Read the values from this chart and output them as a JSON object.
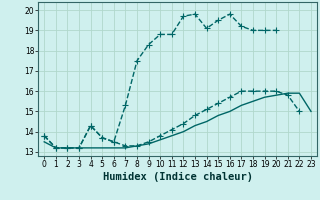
{
  "xlabel": "Humidex (Indice chaleur)",
  "bg_color": "#cff0ee",
  "grid_color": "#b0d8cc",
  "line_color": "#006666",
  "series": [
    {
      "x": [
        0,
        1,
        2,
        3,
        4,
        5,
        6,
        7,
        8,
        9,
        10,
        11,
        12,
        13,
        14,
        15,
        16,
        17,
        18,
        19,
        20
      ],
      "y": [
        13.8,
        13.2,
        13.2,
        13.2,
        14.3,
        13.7,
        13.5,
        15.3,
        17.5,
        18.3,
        18.8,
        18.8,
        19.7,
        19.8,
        19.1,
        19.5,
        19.8,
        19.2,
        19.0,
        19.0,
        19.0
      ],
      "marker": "+",
      "markersize": 4,
      "linewidth": 1.0,
      "linestyle": "--"
    },
    {
      "x": [
        0,
        1,
        2,
        3,
        4,
        5,
        6,
        7,
        8,
        9,
        10,
        11,
        12,
        13,
        14,
        15,
        16,
        17,
        18,
        19,
        20,
        21,
        22
      ],
      "y": [
        13.8,
        13.2,
        13.2,
        13.2,
        14.3,
        13.7,
        13.5,
        13.3,
        13.3,
        13.5,
        13.8,
        14.1,
        14.4,
        14.8,
        15.1,
        15.4,
        15.7,
        16.0,
        16.0,
        16.0,
        16.0,
        15.8,
        15.0
      ],
      "marker": "+",
      "markersize": 4,
      "linewidth": 1.0,
      "linestyle": "--"
    },
    {
      "x": [
        0,
        1,
        2,
        3,
        4,
        5,
        6,
        7,
        8,
        9,
        10,
        11,
        12,
        13,
        14,
        15,
        16,
        17,
        18,
        19,
        20,
        21,
        22,
        23
      ],
      "y": [
        13.5,
        13.2,
        13.2,
        13.2,
        13.2,
        13.2,
        13.2,
        13.2,
        13.3,
        13.4,
        13.6,
        13.8,
        14.0,
        14.3,
        14.5,
        14.8,
        15.0,
        15.3,
        15.5,
        15.7,
        15.8,
        15.9,
        15.9,
        15.0
      ],
      "marker": null,
      "markersize": 0,
      "linewidth": 1.0,
      "linestyle": "-"
    }
  ],
  "xlim": [
    -0.5,
    23.5
  ],
  "ylim": [
    12.8,
    20.4
  ],
  "xticks": [
    0,
    1,
    2,
    3,
    4,
    5,
    6,
    7,
    8,
    9,
    10,
    11,
    12,
    13,
    14,
    15,
    16,
    17,
    18,
    19,
    20,
    21,
    22,
    23
  ],
  "yticks": [
    13,
    14,
    15,
    16,
    17,
    18,
    19,
    20
  ],
  "tick_fontsize": 5.5,
  "xlabel_fontsize": 7.5
}
